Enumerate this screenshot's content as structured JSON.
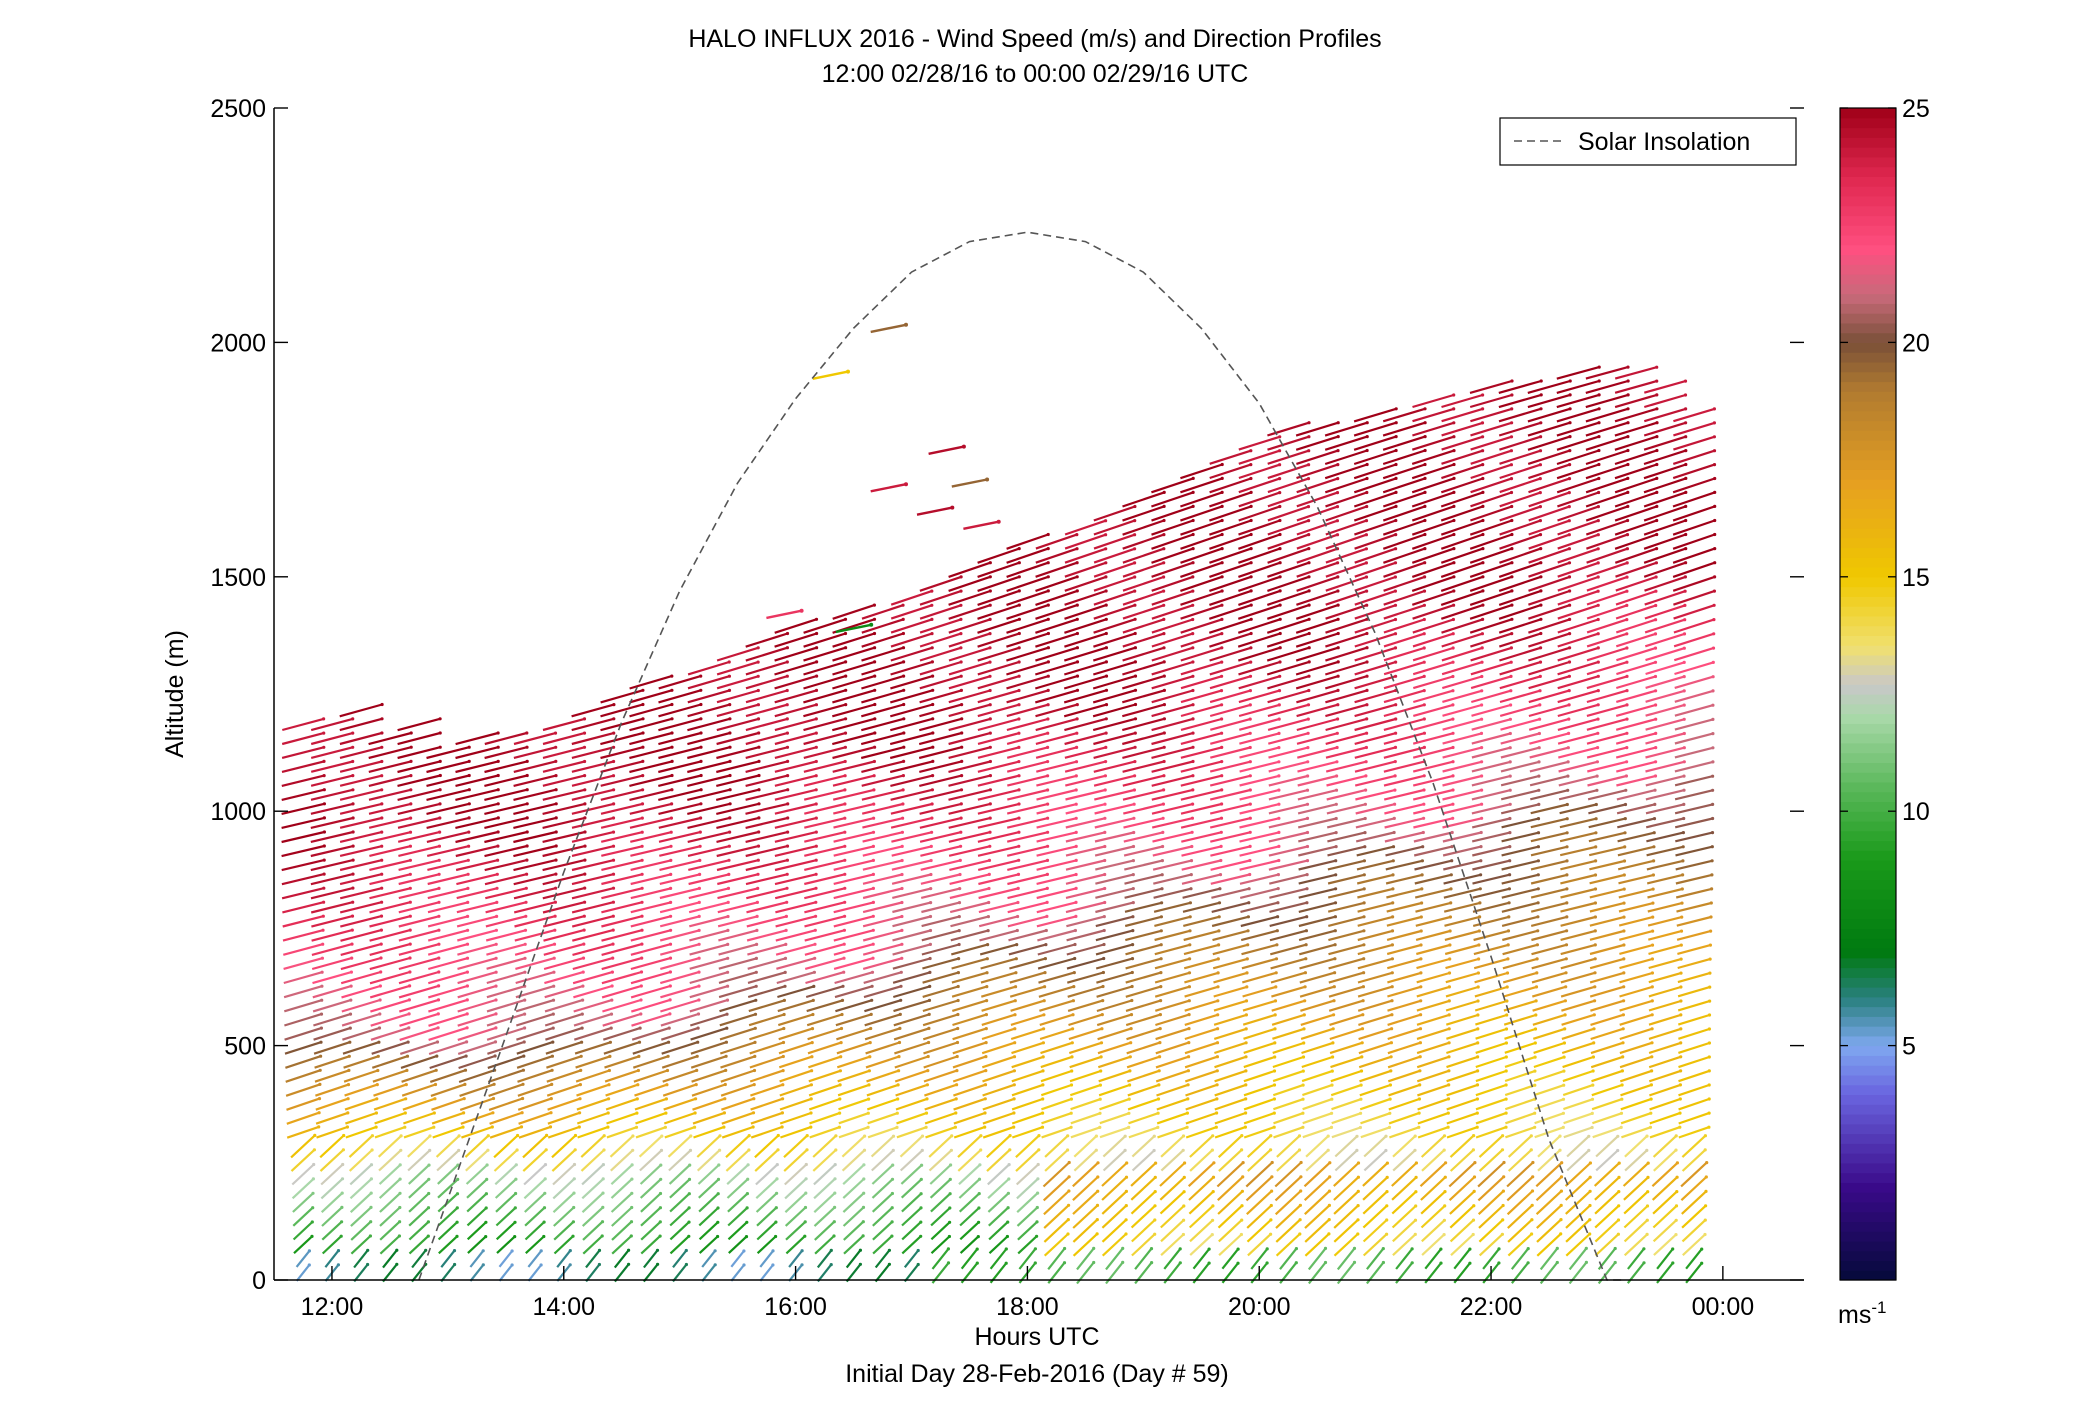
{
  "chart_data": {
    "type": "scatter",
    "title": "HALO INFLUX 2016 - Wind Speed (m/s) and Direction Profiles",
    "subtitle": "12:00 02/28/16 to 00:00 02/29/16  UTC",
    "xlabel": "Hours UTC",
    "xlabel2": "Initial Day 28-Feb-2016 (Day # 59)",
    "ylabel": "Altitude (m)",
    "x_unit": "hours UTC",
    "xlim": [
      11.5,
      24.7
    ],
    "ylim": [
      0,
      2500
    ],
    "x_ticks": [
      12,
      14,
      16,
      18,
      20,
      22,
      24
    ],
    "x_tick_labels": [
      "12:00",
      "14:00",
      "16:00",
      "18:00",
      "20:00",
      "22:00",
      "00:00"
    ],
    "y_ticks": [
      0,
      500,
      1000,
      1500,
      2000,
      2500
    ],
    "y_tick_labels": [
      "0",
      "500",
      "1000",
      "1500",
      "2000",
      "2500"
    ],
    "grid": false,
    "legend": {
      "position": "top-right",
      "entries": [
        {
          "label": "Solar Insolation",
          "style": "dashed",
          "color": "#555555"
        }
      ]
    },
    "colorbar": {
      "min": 0,
      "max": 25,
      "ticks": [
        5,
        10,
        15,
        20,
        25
      ],
      "tick_labels": [
        "5",
        "10",
        "15",
        "20",
        "25"
      ],
      "unit_label": "ms",
      "unit_exponent": "-1",
      "colors": [
        {
          "v": 0,
          "c": "#050a3a"
        },
        {
          "v": 2,
          "c": "#3a0a8a"
        },
        {
          "v": 4,
          "c": "#6a66e0"
        },
        {
          "v": 5,
          "c": "#7fa8f0"
        },
        {
          "v": 6,
          "c": "#2a8080"
        },
        {
          "v": 7,
          "c": "#007a10"
        },
        {
          "v": 9,
          "c": "#1a9a1a"
        },
        {
          "v": 10.5,
          "c": "#5ab85a"
        },
        {
          "v": 12,
          "c": "#a8d8a8"
        },
        {
          "v": 12.7,
          "c": "#c8c8c8"
        },
        {
          "v": 13.5,
          "c": "#f0e070"
        },
        {
          "v": 15,
          "c": "#f0c800"
        },
        {
          "v": 17,
          "c": "#e6a020"
        },
        {
          "v": 19,
          "c": "#b07a30"
        },
        {
          "v": 20,
          "c": "#7a5038"
        },
        {
          "v": 21,
          "c": "#c86a7a"
        },
        {
          "v": 22,
          "c": "#ff4f80"
        },
        {
          "v": 23.5,
          "c": "#e02850"
        },
        {
          "v": 25,
          "c": "#a00018"
        }
      ]
    },
    "solar_insolation": {
      "x": [
        12.75,
        13.5,
        14.0,
        14.5,
        15.0,
        15.5,
        16.0,
        16.5,
        17.0,
        17.5,
        18.0,
        18.5,
        19.0,
        19.5,
        20.0,
        20.5,
        21.0,
        21.5,
        22.0,
        22.5,
        23.0,
        23.15
      ],
      "y": [
        0,
        520,
        870,
        1190,
        1470,
        1700,
        1880,
        2030,
        2150,
        2215,
        2235,
        2215,
        2150,
        2030,
        1870,
        1650,
        1380,
        1060,
        690,
        300,
        0,
        0
      ]
    },
    "series": [
      {
        "name": "wind_profiles",
        "profile_times": [
          11.75,
          12.0,
          12.25,
          12.5,
          12.75,
          13.0,
          13.25,
          13.5,
          13.75,
          14.0,
          14.25,
          14.5,
          14.75,
          15.0,
          15.25,
          15.5,
          15.75,
          16.0,
          16.25,
          16.5,
          16.75,
          17.0,
          17.25,
          17.5,
          17.75,
          18.0,
          18.25,
          18.5,
          18.75,
          19.0,
          19.25,
          19.5,
          19.75,
          20.0,
          20.25,
          20.5,
          20.75,
          21.0,
          21.25,
          21.5,
          21.75,
          22.0,
          22.25,
          22.5,
          22.75,
          23.0,
          23.25,
          23.5,
          23.75
        ],
        "top_altitude_m": [
          1195,
          1210,
          1240,
          1180,
          1200,
          1150,
          1160,
          1170,
          1180,
          1210,
          1240,
          1260,
          1280,
          1300,
          1320,
          1340,
          1370,
          1395,
          1410,
          1430,
          1450,
          1470,
          1500,
          1530,
          1560,
          1580,
          1600,
          1630,
          1660,
          1690,
          1720,
          1750,
          1780,
          1800,
          1820,
          1830,
          1840,
          1850,
          1860,
          1880,
          1900,
          1910,
          1920,
          1930,
          1940,
          1950,
          1940,
          1920,
          1860
        ],
        "level_spacing_m": 30
      }
    ],
    "isolated_vectors": [
      {
        "x": 16.8,
        "y": 2030,
        "speed": 19.5
      },
      {
        "x": 16.3,
        "y": 1930,
        "speed": 15.0
      },
      {
        "x": 17.3,
        "y": 1770,
        "speed": 24.5
      },
      {
        "x": 16.8,
        "y": 1690,
        "speed": 24.0
      },
      {
        "x": 17.5,
        "y": 1700,
        "speed": 19.5
      },
      {
        "x": 17.2,
        "y": 1640,
        "speed": 24.5
      },
      {
        "x": 17.6,
        "y": 1610,
        "speed": 24.0
      },
      {
        "x": 15.9,
        "y": 1420,
        "speed": 23.0
      },
      {
        "x": 16.5,
        "y": 1390,
        "speed": 8.0
      }
    ]
  }
}
